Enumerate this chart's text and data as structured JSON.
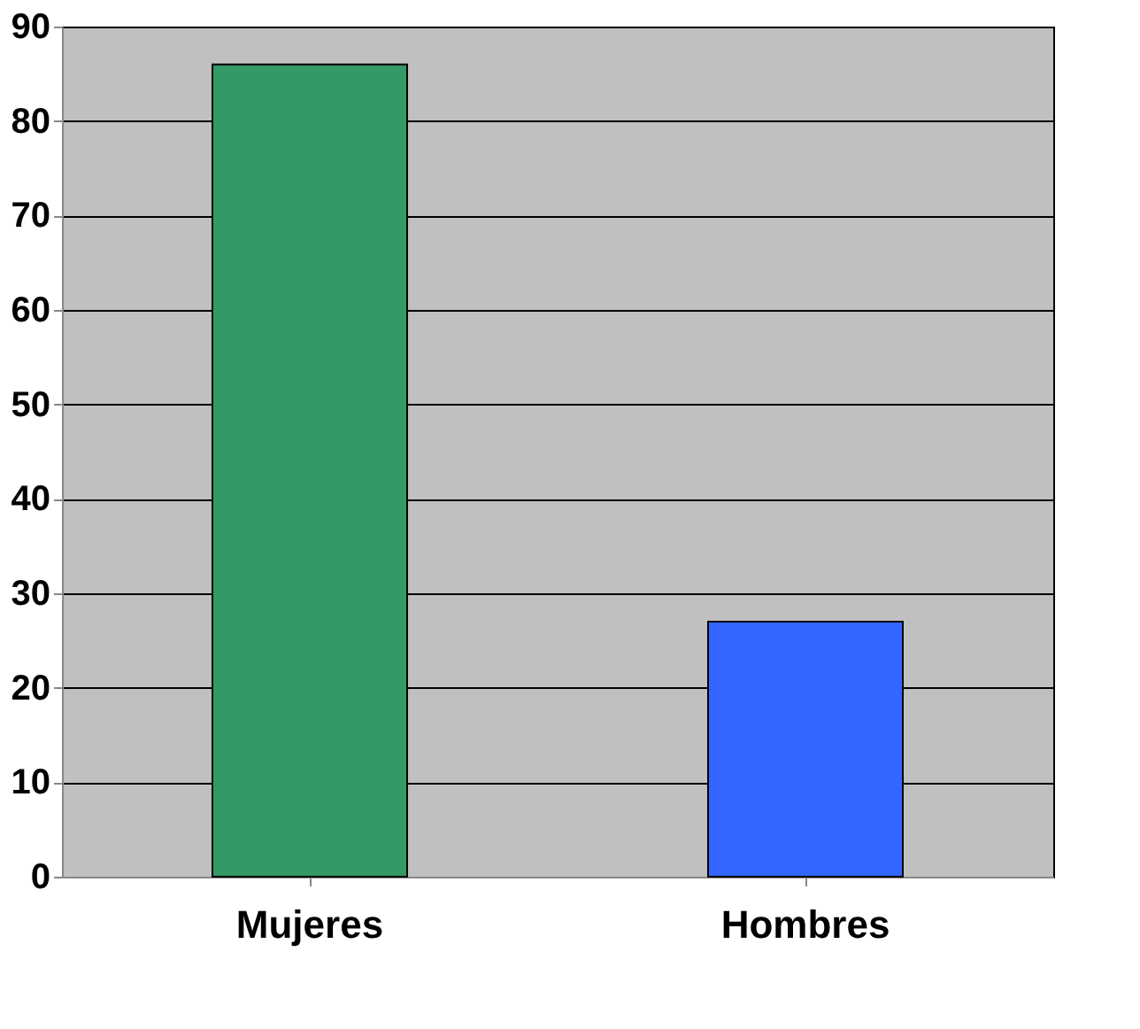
{
  "chart_data": {
    "type": "bar",
    "categories": [
      "Mujeres",
      "Hombres"
    ],
    "values": [
      86,
      27
    ],
    "colors": [
      "#339966",
      "#3366ff"
    ],
    "ylim": [
      0,
      90
    ],
    "yticks": [
      0,
      10,
      20,
      30,
      40,
      50,
      60,
      70,
      80,
      90
    ],
    "grid": "y"
  }
}
